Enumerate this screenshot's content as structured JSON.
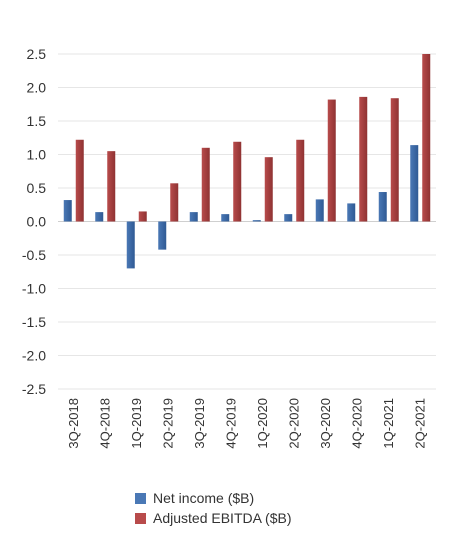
{
  "chart_data": {
    "type": "bar",
    "categories": [
      "3Q-2018",
      "4Q-2018",
      "1Q-2019",
      "2Q-2019",
      "3Q-2019",
      "4Q-2019",
      "1Q-2020",
      "2Q-2020",
      "3Q-2020",
      "4Q-2020",
      "1Q-2021",
      "2Q-2021"
    ],
    "series": [
      {
        "name": "Net income ($B)",
        "color": "#4a78b5",
        "values": [
          0.32,
          0.14,
          -0.7,
          -0.42,
          0.14,
          0.11,
          0.02,
          0.11,
          0.33,
          0.27,
          0.44,
          1.14
        ]
      },
      {
        "name": "Adjusted EBITDA ($B)",
        "color": "#b84b4b",
        "values": [
          1.22,
          1.05,
          0.15,
          0.57,
          1.1,
          1.19,
          0.96,
          1.22,
          1.82,
          1.86,
          1.84,
          2.5
        ]
      }
    ],
    "ylim": [
      -2.5,
      2.5
    ],
    "yticks": [
      "2.5",
      "2.0",
      "1.5",
      "1.0",
      "0.5",
      "0.0",
      "-0.5",
      "-1.0",
      "-1.5",
      "-2.0",
      "-2.5"
    ],
    "ytick_values": [
      2.5,
      2.0,
      1.5,
      1.0,
      0.5,
      0.0,
      -0.5,
      -1.0,
      -1.5,
      -2.0,
      -2.5
    ],
    "grid": true,
    "legend": "bottom"
  }
}
